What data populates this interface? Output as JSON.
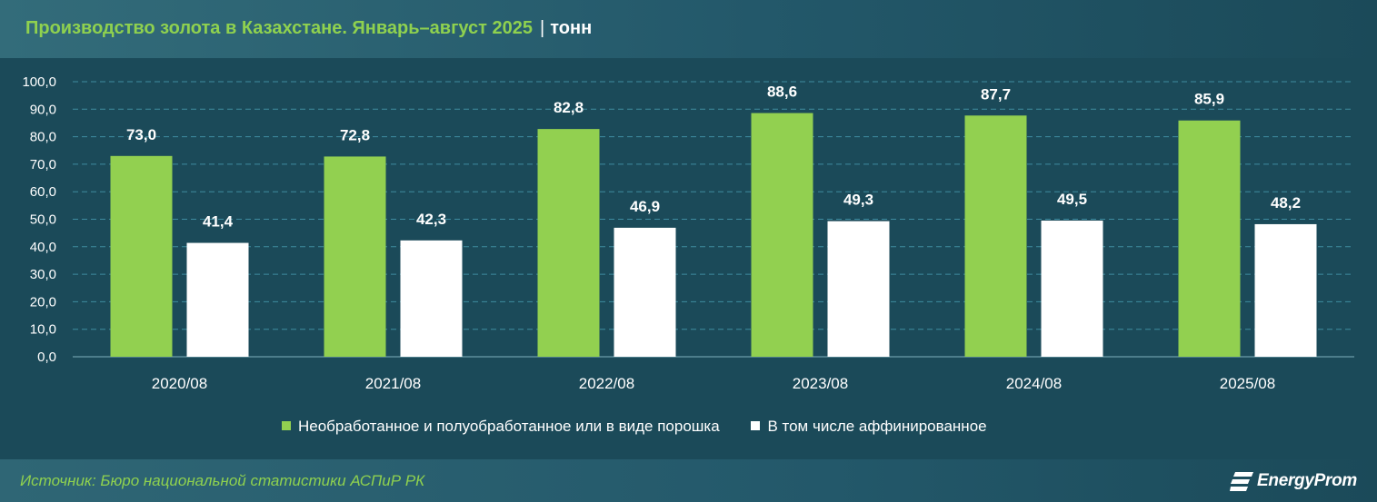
{
  "header": {
    "title": "Производство золота в Казахстане. Январь–август 2025",
    "separator": "|",
    "unit": "тонн"
  },
  "chart_data": {
    "type": "bar",
    "categories": [
      "2020/08",
      "2021/08",
      "2022/08",
      "2023/08",
      "2024/08",
      "2025/08"
    ],
    "series": [
      {
        "name": "Необработанное и полуобработанное или в виде порошка",
        "color": "#92d050",
        "values": [
          73.0,
          72.8,
          82.8,
          88.6,
          87.7,
          85.9
        ],
        "labels": [
          "73,0",
          "72,8",
          "82,8",
          "88,6",
          "87,7",
          "85,9"
        ]
      },
      {
        "name": "В том числе аффинированное",
        "color": "#ffffff",
        "values": [
          41.4,
          42.3,
          46.9,
          49.3,
          49.5,
          48.2
        ],
        "labels": [
          "41,4",
          "42,3",
          "46,9",
          "49,3",
          "49,5",
          "48,2"
        ]
      }
    ],
    "yticks": [
      "0,0",
      "10,0",
      "20,0",
      "30,0",
      "40,0",
      "50,0",
      "60,0",
      "70,0",
      "80,0",
      "90,0",
      "100,0"
    ],
    "ylim": [
      0,
      100
    ],
    "grid": true,
    "legend": "bottom"
  },
  "legend": {
    "series1": "Необработанное и полуобработанное или в виде порошка",
    "series2": "В том числе аффинированное"
  },
  "footer": {
    "source": "Источник: Бюро национальной статистики АСПиР РК",
    "logo_text": "EnergyProm",
    "logo_icon": "energyprom-logo-icon"
  }
}
